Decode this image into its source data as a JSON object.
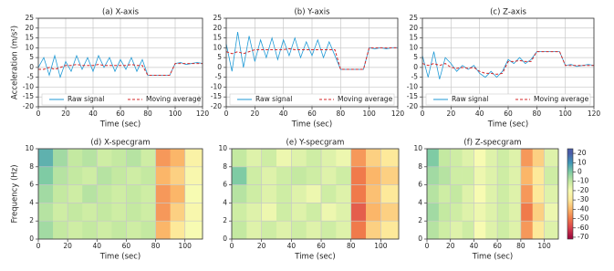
{
  "chart_data": [
    {
      "type": "line",
      "title": "(a) X-axis",
      "xlabel": "Time (sec)",
      "ylabel": "Acceleration (m/s²)",
      "x": [
        0,
        4,
        8,
        12,
        16,
        20,
        24,
        28,
        32,
        36,
        40,
        44,
        48,
        52,
        56,
        60,
        64,
        68,
        72,
        76,
        80,
        84,
        88,
        92,
        96,
        100,
        104,
        108,
        112,
        116,
        120
      ],
      "series": [
        {
          "name": "Raw signal",
          "color": "#1f9ad6",
          "linestyle": "solid",
          "values": [
            0,
            5,
            -4,
            6,
            -5,
            3,
            -2,
            6,
            -1,
            5,
            -2,
            6,
            0,
            5,
            -2,
            4,
            -1,
            5,
            -2,
            4,
            -4,
            -4,
            -4,
            -4,
            -4,
            2,
            2.5,
            1.5,
            2,
            2.5,
            2
          ]
        },
        {
          "name": "Moving average",
          "color": "#d62728",
          "linestyle": "dashed",
          "values": [
            -1,
            -1,
            0,
            -1,
            0,
            1,
            1,
            1.5,
            1,
            1,
            1,
            1.5,
            1,
            1,
            1,
            1,
            1,
            1.5,
            1,
            1,
            -4,
            -4,
            -4,
            -4,
            -4,
            2,
            2,
            2,
            2,
            2,
            2
          ]
        }
      ],
      "xlim": [
        0,
        120
      ],
      "xticks": [
        0,
        20,
        40,
        60,
        80,
        100,
        120
      ],
      "ylim": [
        -20,
        25
      ],
      "yticks": [
        -20,
        -15,
        -10,
        -5,
        0,
        5,
        10,
        15,
        20,
        25
      ],
      "grid": true,
      "legend": "lower center"
    },
    {
      "type": "line",
      "title": "(b) Y-axis",
      "xlabel": "Time (sec)",
      "x": [
        0,
        4,
        8,
        12,
        16,
        20,
        24,
        28,
        32,
        36,
        40,
        44,
        48,
        52,
        56,
        60,
        64,
        68,
        72,
        76,
        80,
        84,
        88,
        92,
        96,
        100,
        104,
        108,
        112,
        116,
        120
      ],
      "series": [
        {
          "name": "Raw signal",
          "color": "#1f9ad6",
          "linestyle": "solid",
          "values": [
            12,
            -2,
            18,
            0,
            16,
            3,
            14,
            5,
            15,
            4,
            14,
            6,
            15,
            5,
            13,
            6,
            14,
            5,
            13,
            6,
            -1,
            -1,
            -1,
            -1,
            -1,
            10,
            9.5,
            10,
            9.5,
            10,
            10
          ]
        },
        {
          "name": "Moving average",
          "color": "#d62728",
          "linestyle": "dashed",
          "values": [
            8,
            7,
            8,
            7,
            8,
            9,
            9,
            9,
            9,
            9,
            9,
            9.5,
            9,
            9,
            9,
            9,
            9,
            9,
            9,
            9,
            -1,
            -1,
            -1,
            -1,
            -1,
            10,
            10,
            10,
            10,
            10,
            10
          ]
        }
      ],
      "xlim": [
        0,
        120
      ],
      "xticks": [
        0,
        20,
        40,
        60,
        80,
        100,
        120
      ],
      "ylim": [
        -20,
        25
      ],
      "yticks": [
        -20,
        -15,
        -10,
        -5,
        0,
        5,
        10,
        15,
        20,
        25
      ],
      "grid": true,
      "legend": "lower center"
    },
    {
      "type": "line",
      "title": "(c) Z-axis",
      "xlabel": "Time (sec)",
      "x": [
        0,
        4,
        8,
        12,
        16,
        20,
        24,
        28,
        32,
        36,
        40,
        44,
        48,
        52,
        56,
        60,
        64,
        68,
        72,
        76,
        80,
        84,
        88,
        92,
        96,
        100,
        104,
        108,
        112,
        116,
        120
      ],
      "series": [
        {
          "name": "Raw signal",
          "color": "#1f9ad6",
          "linestyle": "solid",
          "values": [
            6,
            -5,
            8,
            -6,
            5,
            2,
            -2,
            1,
            -1,
            1,
            -3,
            -5,
            -2,
            -5,
            -2,
            4,
            2,
            5,
            2,
            4,
            8,
            8,
            8,
            8,
            8,
            1,
            1.5,
            0.5,
            1,
            1.5,
            1
          ]
        },
        {
          "name": "Moving average",
          "color": "#d62728",
          "linestyle": "dashed",
          "values": [
            2,
            1,
            2,
            1,
            2,
            0,
            -0.5,
            0,
            -0.5,
            0,
            -2,
            -3,
            -3,
            -3.5,
            -3,
            3,
            3,
            3.5,
            3,
            3,
            8,
            8,
            8,
            8,
            8,
            1,
            1,
            1,
            1,
            1,
            1
          ]
        }
      ],
      "xlim": [
        0,
        120
      ],
      "xticks": [
        0,
        20,
        40,
        60,
        80,
        100,
        120
      ],
      "ylim": [
        -20,
        25
      ],
      "yticks": [
        -20,
        -15,
        -10,
        -5,
        0,
        5,
        10,
        15,
        20,
        25
      ],
      "grid": true,
      "legend": "lower center"
    },
    {
      "type": "heatmap",
      "title": "(d) X-specgram",
      "xlabel": "Time (sec)",
      "ylabel": "Frequency (Hz)",
      "x": [
        0,
        10,
        20,
        30,
        40,
        50,
        60,
        70,
        80,
        90,
        100
      ],
      "y": [
        0,
        2,
        4,
        6,
        8
      ],
      "z": [
        [
          -5,
          -10,
          -12,
          -10,
          -12,
          -10,
          -12,
          -10,
          -40,
          -30,
          -20
        ],
        [
          -8,
          -12,
          -10,
          -12,
          -10,
          -12,
          -10,
          -12,
          -45,
          -35,
          -22
        ],
        [
          -5,
          -10,
          -12,
          -8,
          -10,
          -12,
          -10,
          -12,
          -45,
          -40,
          -20
        ],
        [
          0,
          -8,
          -10,
          -12,
          -8,
          -10,
          -12,
          -10,
          -40,
          -35,
          -22
        ],
        [
          5,
          -5,
          -10,
          -8,
          -12,
          -10,
          -8,
          -12,
          -45,
          -40,
          -25
        ]
      ],
      "xlim": [
        0,
        112
      ],
      "xticks": [
        0,
        20,
        40,
        60,
        80,
        100
      ],
      "ylim": [
        0,
        10
      ],
      "yticks": [
        0,
        2,
        4,
        6,
        8,
        10
      ],
      "grid": true
    },
    {
      "type": "heatmap",
      "title": "(e) Y-specgram",
      "xlabel": "Time (sec)",
      "x": [
        0,
        10,
        20,
        30,
        40,
        50,
        60,
        70,
        80,
        90,
        100
      ],
      "y": [
        0,
        2,
        4,
        6,
        8
      ],
      "z": [
        [
          -10,
          -15,
          -12,
          -15,
          -12,
          -15,
          -12,
          -15,
          -50,
          -35,
          -30
        ],
        [
          -12,
          -15,
          -18,
          -12,
          -15,
          -12,
          -18,
          -15,
          -55,
          -40,
          -35
        ],
        [
          -8,
          -12,
          -15,
          -12,
          -15,
          -18,
          -12,
          -15,
          -50,
          -38,
          -30
        ],
        [
          0,
          -12,
          -15,
          -12,
          -10,
          -12,
          -15,
          -12,
          -50,
          -40,
          -35
        ],
        [
          -10,
          -15,
          -12,
          -18,
          -15,
          -12,
          -15,
          -18,
          -45,
          -35,
          -30
        ]
      ],
      "xlim": [
        0,
        112
      ],
      "xticks": [
        0,
        20,
        40,
        60,
        80,
        100
      ],
      "ylim": [
        0,
        10
      ],
      "yticks": [
        0,
        2,
        4,
        6,
        8,
        10
      ],
      "grid": true
    },
    {
      "type": "heatmap",
      "title": "(f) Z-specgram",
      "xlabel": "Time (sec)",
      "x": [
        0,
        10,
        20,
        30,
        40,
        50,
        60,
        70,
        80,
        90,
        100
      ],
      "y": [
        0,
        2,
        4,
        6,
        8
      ],
      "z": [
        [
          -8,
          -12,
          -15,
          -12,
          -20,
          -15,
          -12,
          -15,
          -45,
          -30,
          -15
        ],
        [
          -5,
          -10,
          -12,
          -15,
          -18,
          -15,
          -12,
          -15,
          -50,
          -35,
          -18
        ],
        [
          -8,
          -12,
          -10,
          -15,
          -20,
          -15,
          -12,
          -15,
          -45,
          -30,
          -15
        ],
        [
          -5,
          -8,
          -12,
          -12,
          -18,
          -15,
          -12,
          -15,
          -40,
          -30,
          -12
        ],
        [
          0,
          -10,
          -12,
          -15,
          -20,
          -15,
          -12,
          -15,
          -45,
          -35,
          -15
        ]
      ],
      "xlim": [
        0,
        112
      ],
      "xticks": [
        0,
        20,
        40,
        60,
        80,
        100
      ],
      "ylim": [
        0,
        10
      ],
      "yticks": [
        0,
        2,
        4,
        6,
        8,
        10
      ],
      "grid": true
    }
  ],
  "colorbar": {
    "zlim": [
      -72,
      25
    ],
    "ticks": [
      20,
      10,
      0,
      -10,
      -20,
      -30,
      -40,
      -50,
      -60,
      -70
    ],
    "colors": [
      "#4a5ca8",
      "#3f96b7",
      "#7fcba4",
      "#c4e9a1",
      "#f7fbb2",
      "#fde99a",
      "#fbb669",
      "#f07a4b",
      "#d8424d",
      "#a00b3f"
    ]
  }
}
